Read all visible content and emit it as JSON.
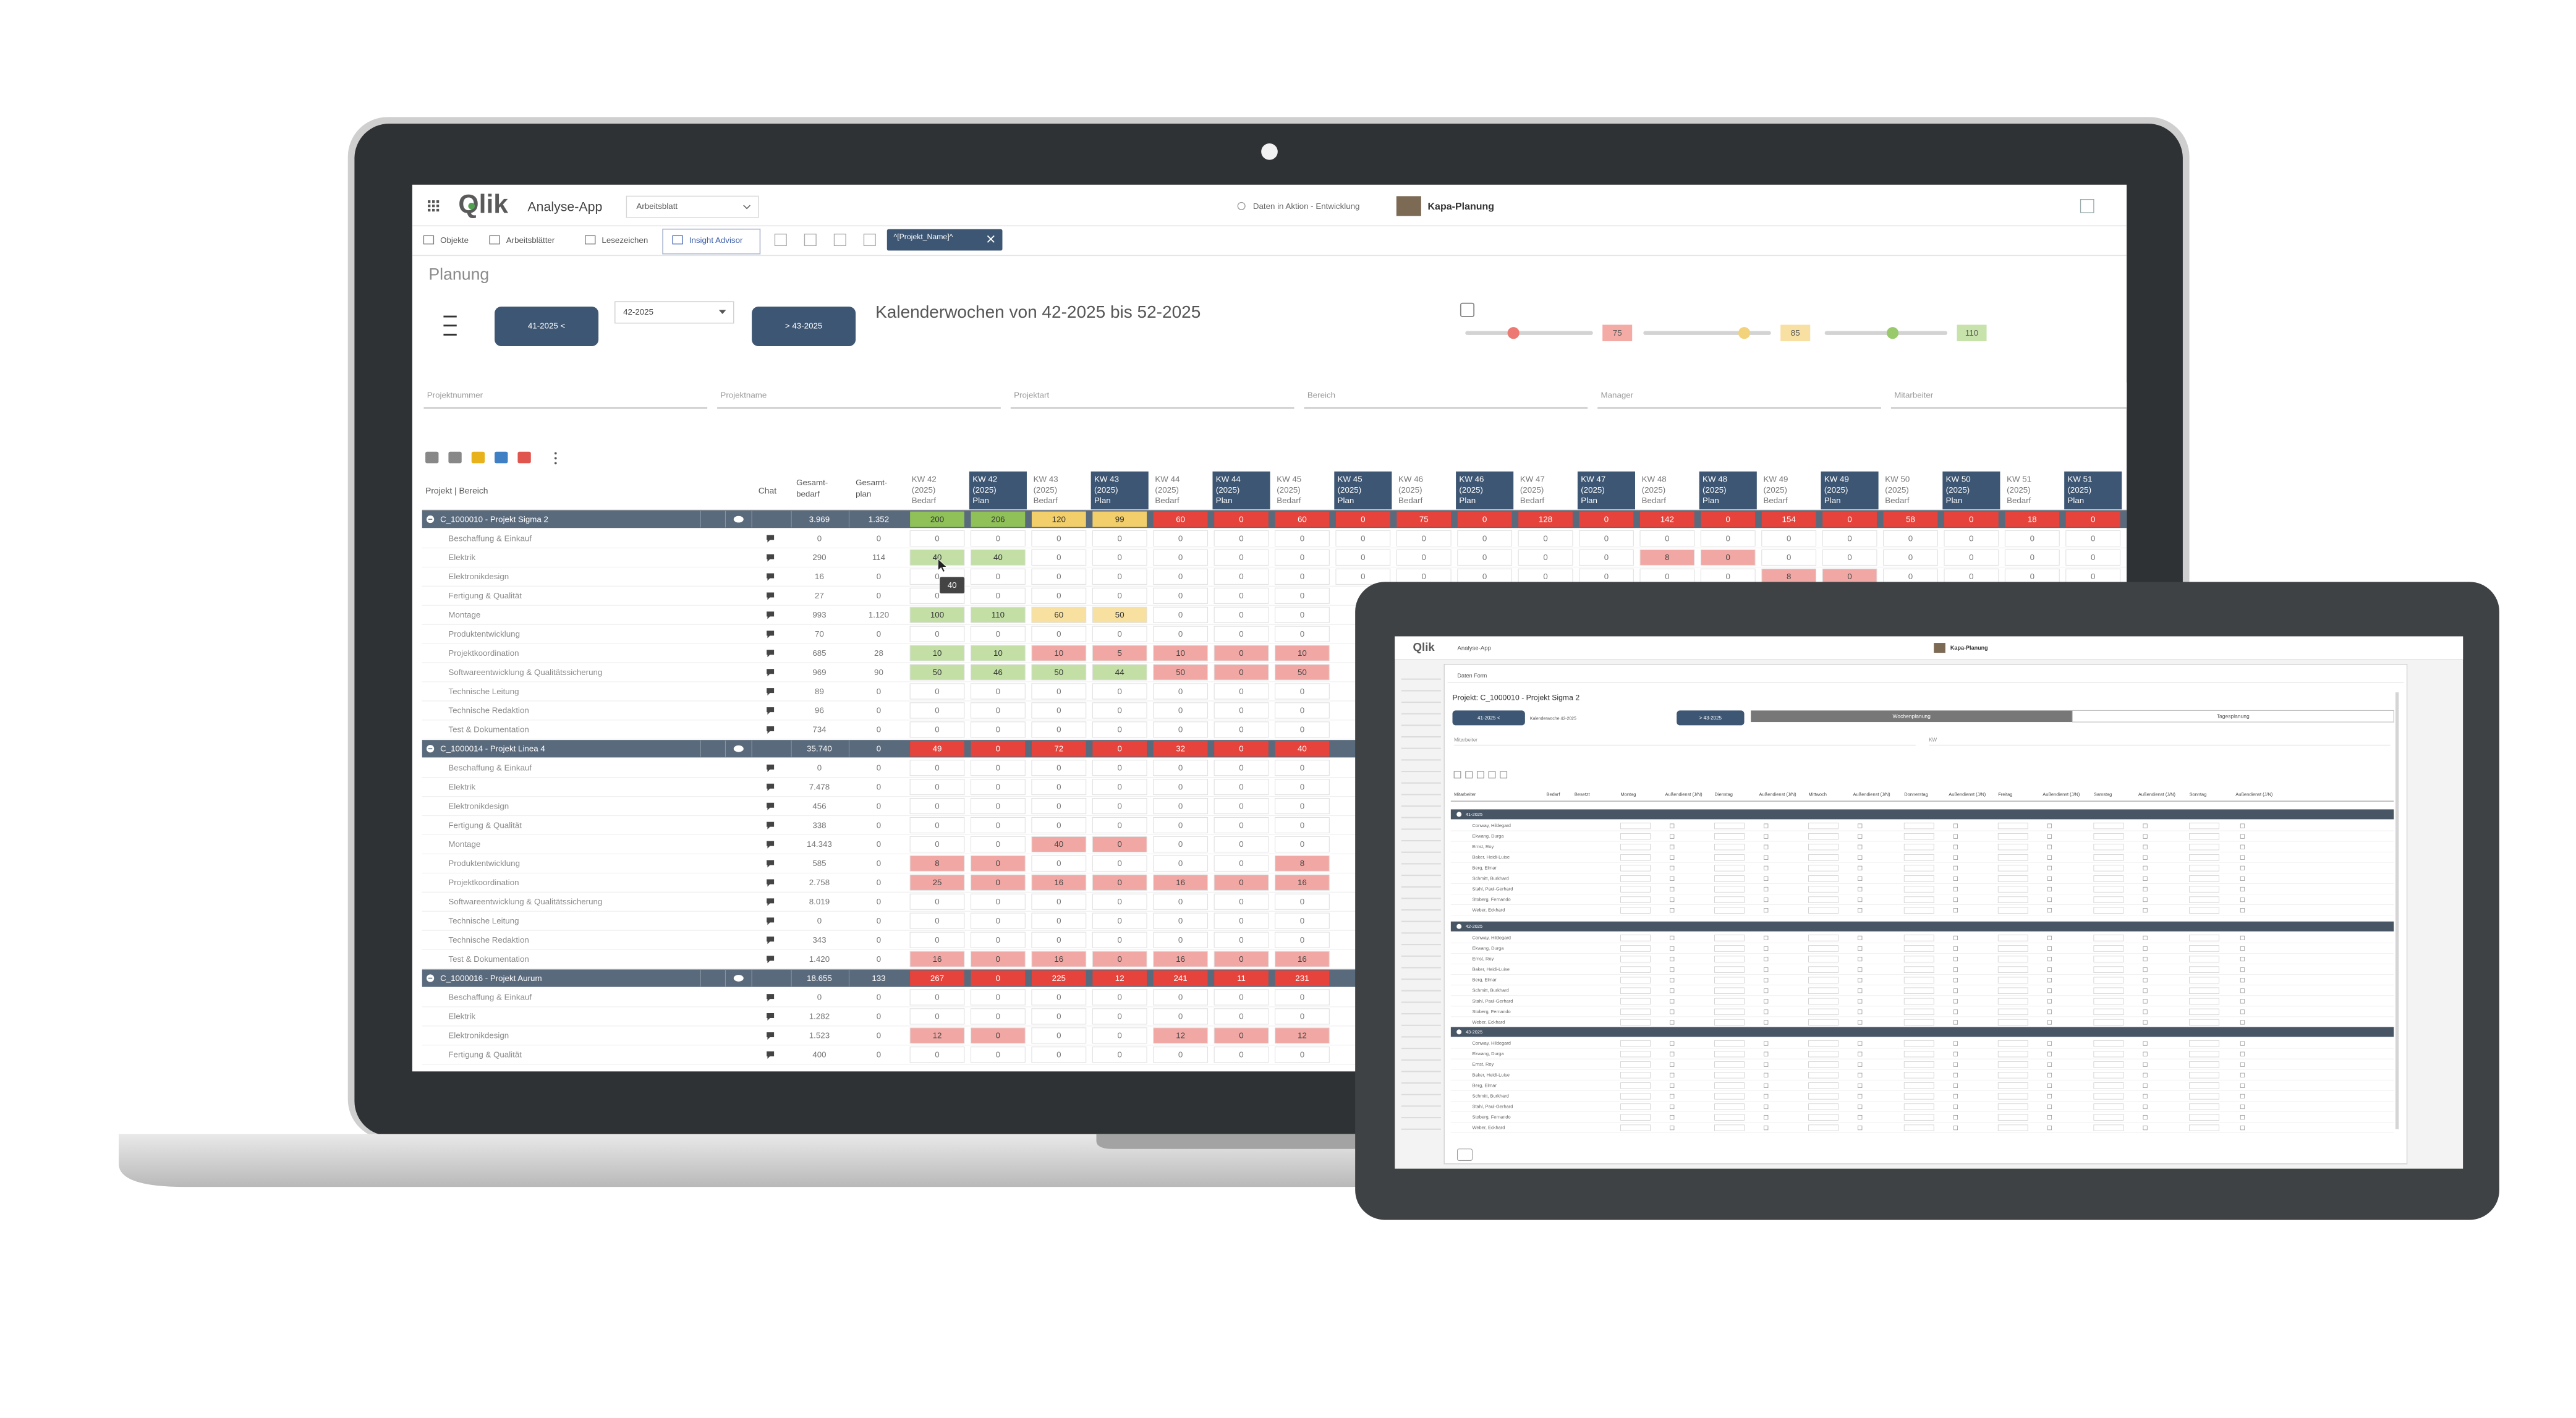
{
  "app": {
    "logo": "Qlik",
    "name": "Analyse-App",
    "sheet_menu": "Arbeitsblatt",
    "space": "Daten in Aktion - Entwicklung",
    "sheet": "Kapa-Planung"
  },
  "toolbar": {
    "items": [
      "Objekte",
      "Arbeitsblätter",
      "Lesezeichen",
      "Insight Advisor"
    ],
    "selection": "^[Projekt_Name]^"
  },
  "page": {
    "title": "Planung",
    "prev_button": "41-2025 <",
    "week_select": "42-2025",
    "next_button": "> 43-2025",
    "heading": "Kalenderwochen von 42-2025 bis 52-2025",
    "thresholds": [
      "75",
      "85",
      "110"
    ]
  },
  "filters": [
    "Projektnummer",
    "Projektname",
    "Projektart",
    "Bereich",
    "Manager",
    "Mitarbeiter"
  ],
  "table": {
    "headers": {
      "project": "Projekt | Bereich",
      "chat": "Chat",
      "total": [
        "Gesamt-",
        "bedarf"
      ],
      "plan": [
        "Gesamt-",
        "plan"
      ]
    },
    "weeks": [
      "KW 42",
      "KW 43",
      "KW 44",
      "KW 45",
      "KW 46",
      "KW 47",
      "KW 48",
      "KW 49",
      "KW 50",
      "KW 51"
    ],
    "year": "(2025)",
    "kinds": [
      "Bedarf",
      "Plan"
    ],
    "tooltip": "40",
    "projects": [
      {
        "label": "C_1000010 - Projekt Sigma 2",
        "total": "3.969",
        "plan": "1.352",
        "values": [
          200,
          206,
          120,
          99,
          60,
          0,
          60,
          0,
          75,
          0,
          128,
          0,
          142,
          0,
          154,
          0,
          58,
          0,
          18,
          0
        ],
        "areas": [
          {
            "label": "Beschaffung & Einkauf",
            "total": "0",
            "plan": "0",
            "values": [
              0,
              0,
              0,
              0,
              0,
              0,
              0,
              0,
              0,
              0,
              0,
              0,
              0,
              0,
              0,
              0,
              0,
              0,
              0,
              0
            ]
          },
          {
            "label": "Elektrik",
            "total": "290",
            "plan": "114",
            "values": [
              40,
              40,
              0,
              0,
              0,
              0,
              0,
              0,
              0,
              0,
              0,
              0,
              8,
              0,
              0,
              0,
              0,
              0,
              0,
              0
            ]
          },
          {
            "label": "Elektronikdesign",
            "total": "16",
            "plan": "0",
            "values": [
              0,
              0,
              0,
              0,
              0,
              0,
              0,
              0,
              0,
              0,
              0,
              0,
              0,
              0,
              8,
              0,
              0,
              0,
              0,
              0
            ]
          },
          {
            "label": "Fertigung & Qualität",
            "total": "27",
            "plan": "0",
            "values": [
              0,
              0,
              0,
              0,
              0,
              0,
              0
            ]
          },
          {
            "label": "Montage",
            "total": "993",
            "plan": "1.120",
            "values": [
              100,
              110,
              60,
              50,
              0,
              0,
              0
            ]
          },
          {
            "label": "Produktentwicklung",
            "total": "70",
            "plan": "0",
            "values": [
              0,
              0,
              0,
              0,
              0,
              0,
              0
            ]
          },
          {
            "label": "Projektkoordination",
            "total": "685",
            "plan": "28",
            "values": [
              10,
              10,
              10,
              5,
              10,
              0,
              10
            ]
          },
          {
            "label": "Softwareentwicklung & Qualitätssicherung",
            "total": "969",
            "plan": "90",
            "values": [
              50,
              46,
              50,
              44,
              50,
              0,
              50
            ]
          },
          {
            "label": "Technische Leitung",
            "total": "89",
            "plan": "0",
            "values": [
              0,
              0,
              0,
              0,
              0,
              0,
              0
            ]
          },
          {
            "label": "Technische Redaktion",
            "total": "96",
            "plan": "0",
            "values": [
              0,
              0,
              0,
              0,
              0,
              0,
              0
            ]
          },
          {
            "label": "Test & Dokumentation",
            "total": "734",
            "plan": "0",
            "values": [
              0,
              0,
              0,
              0,
              0,
              0,
              0
            ]
          }
        ]
      },
      {
        "label": "C_1000014 - Projekt Linea 4",
        "total": "35.740",
        "plan": "0",
        "values": [
          49,
          0,
          72,
          0,
          32,
          0,
          40
        ],
        "areas": [
          {
            "label": "Beschaffung & Einkauf",
            "total": "0",
            "plan": "0",
            "values": [
              0,
              0,
              0,
              0,
              0,
              0,
              0
            ]
          },
          {
            "label": "Elektrik",
            "total": "7.478",
            "plan": "0",
            "values": [
              0,
              0,
              0,
              0,
              0,
              0,
              0
            ]
          },
          {
            "label": "Elektronikdesign",
            "total": "456",
            "plan": "0",
            "values": [
              0,
              0,
              0,
              0,
              0,
              0,
              0
            ]
          },
          {
            "label": "Fertigung & Qualität",
            "total": "338",
            "plan": "0",
            "values": [
              0,
              0,
              0,
              0,
              0,
              0,
              0
            ]
          },
          {
            "label": "Montage",
            "total": "14.343",
            "plan": "0",
            "values": [
              0,
              0,
              40,
              0,
              0,
              0,
              0
            ]
          },
          {
            "label": "Produktentwicklung",
            "total": "585",
            "plan": "0",
            "values": [
              8,
              0,
              0,
              0,
              0,
              0,
              8
            ]
          },
          {
            "label": "Projektkoordination",
            "total": "2.758",
            "plan": "0",
            "values": [
              25,
              0,
              16,
              0,
              16,
              0,
              16
            ]
          },
          {
            "label": "Softwareentwicklung & Qualitätssicherung",
            "total": "8.019",
            "plan": "0",
            "values": [
              0,
              0,
              0,
              0,
              0,
              0,
              0
            ]
          },
          {
            "label": "Technische Leitung",
            "total": "0",
            "plan": "0",
            "values": [
              0,
              0,
              0,
              0,
              0,
              0,
              0
            ]
          },
          {
            "label": "Technische Redaktion",
            "total": "343",
            "plan": "0",
            "values": [
              0,
              0,
              0,
              0,
              0,
              0,
              0
            ]
          },
          {
            "label": "Test & Dokumentation",
            "total": "1.420",
            "plan": "0",
            "values": [
              16,
              0,
              16,
              0,
              16,
              0,
              16
            ]
          }
        ]
      },
      {
        "label": "C_1000016 - Projekt Aurum",
        "total": "18.655",
        "plan": "133",
        "values": [
          267,
          0,
          225,
          12,
          241,
          11,
          231
        ],
        "areas": [
          {
            "label": "Beschaffung & Einkauf",
            "total": "0",
            "plan": "0",
            "values": [
              0,
              0,
              0,
              0,
              0,
              0,
              0
            ]
          },
          {
            "label": "Elektrik",
            "total": "1.282",
            "plan": "0",
            "values": [
              0,
              0,
              0,
              0,
              0,
              0,
              0
            ]
          },
          {
            "label": "Elektronikdesign",
            "total": "1.523",
            "plan": "0",
            "values": [
              12,
              0,
              0,
              0,
              12,
              0,
              12
            ]
          },
          {
            "label": "Fertigung & Qualität",
            "total": "400",
            "plan": "0",
            "values": [
              0,
              0,
              0,
              0,
              0,
              0,
              0
            ]
          }
        ]
      }
    ]
  },
  "tablet": {
    "form_title": "Daten Form",
    "project": "Projekt: C_1000010 - Projekt Sigma 2",
    "prev_button": "41-2025 <",
    "week_label": "Kalenderwoche 42-2025",
    "next_button": "> 43-2025",
    "tabs": [
      "Wochenplanung",
      "Tagesplanung"
    ],
    "filter_labels": [
      "Mitarbeiter",
      "KW"
    ],
    "columns": [
      "Mitarbeiter",
      "Bedarf",
      "Besetzt",
      "Montag",
      "Außendienst (J/N)",
      "Dienstag",
      "Außendienst (J/N)",
      "Mittwoch",
      "Außendienst (J/N)",
      "Donnerstag",
      "Außendienst (J/N)",
      "Freitag",
      "Außendienst (J/N)",
      "Samstag",
      "Außendienst (J/N)",
      "Sonntag",
      "Außendienst (J/N)"
    ],
    "groups": [
      "41-2025",
      "42-2025",
      "43-2025"
    ],
    "employees": [
      "Conway, Hildegard",
      "Ekwang, Durga",
      "Ernst, Roy",
      "Baker, Heidi-Luise",
      "Berg, Elmar",
      "Schmitt, Burkhard",
      "Stahl, Paul-Gerhard",
      "Stoberg, Fernando",
      "Weber, Eckhard"
    ]
  }
}
